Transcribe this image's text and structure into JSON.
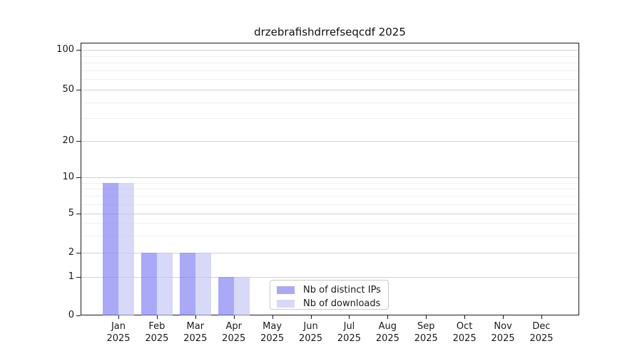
{
  "title": "drzebrafishdrrefseqcdf 2025",
  "chart_data": {
    "type": "bar",
    "title": "drzebrafishdrrefseqcdf 2025",
    "xlabel": "",
    "ylabel": "",
    "x_tick_months": [
      "Jan",
      "Feb",
      "Mar",
      "Apr",
      "May",
      "Jun",
      "Jul",
      "Aug",
      "Sep",
      "Oct",
      "Nov",
      "Dec"
    ],
    "x_tick_year": "2025",
    "series": [
      {
        "name": "Nb of distinct IPs",
        "color": "rgba(123,123,244,0.65)",
        "values": [
          9,
          2,
          2,
          1,
          0,
          0,
          0,
          0,
          0,
          0,
          0,
          0
        ]
      },
      {
        "name": "Nb of downloads",
        "color": "rgba(195,195,244,0.65)",
        "values": [
          9,
          2,
          2,
          1,
          0,
          0,
          0,
          0,
          0,
          0,
          0,
          0
        ]
      }
    ],
    "y_axis": {
      "scale": "log-like with 0 baseline",
      "ticks": [
        0,
        1,
        2,
        5,
        10,
        20,
        50,
        100
      ],
      "minor_gridlines": [
        3,
        4,
        6,
        7,
        8,
        9,
        30,
        40,
        60,
        70,
        80,
        90
      ],
      "ylim": [
        0,
        105
      ]
    },
    "grid": "horizontal only",
    "legend_position": "inside lower middle"
  },
  "colors": {
    "bar_distinct_ips_rendered": "#a9a9f8",
    "bar_downloads_rendered": "#d8d8f8",
    "grid_major": "#d2d2d2",
    "grid_minor": "#efefef",
    "spine": "#1a1a1a",
    "text": "#1a1a1a"
  }
}
